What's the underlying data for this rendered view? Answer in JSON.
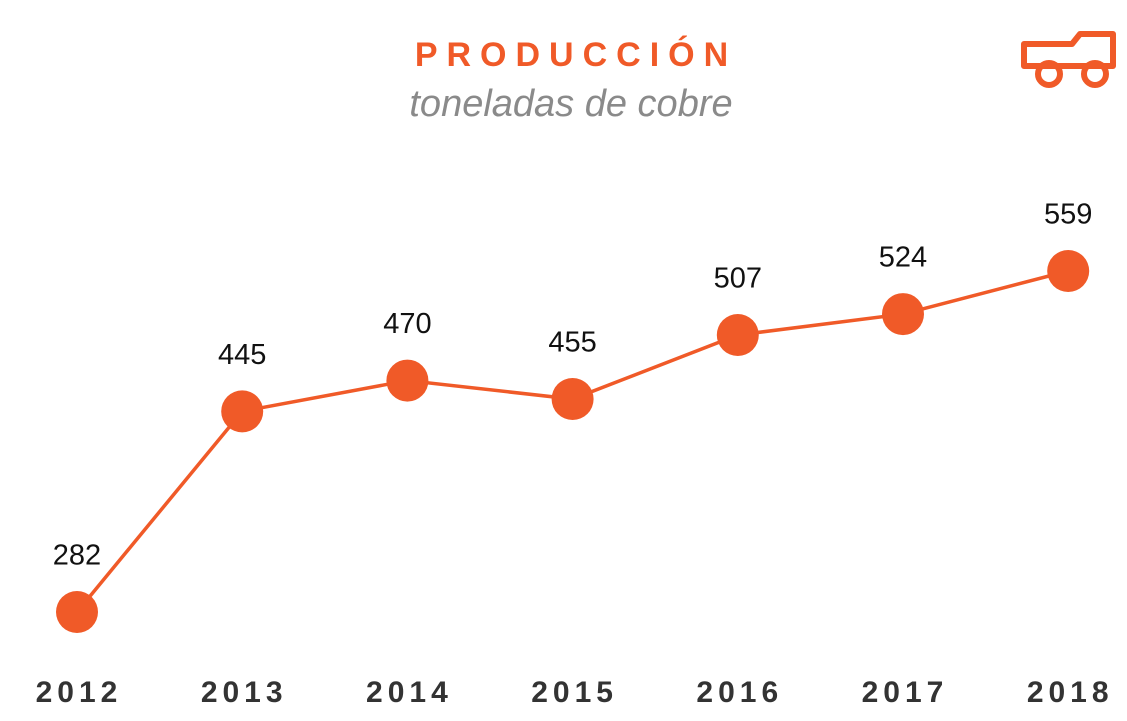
{
  "chart_data": {
    "type": "line",
    "title": "PRODUCCIÓN",
    "subtitle": "toneladas de cobre",
    "categories": [
      "2012",
      "2013",
      "2014",
      "2015",
      "2016",
      "2017",
      "2018"
    ],
    "values": [
      282,
      445,
      470,
      455,
      507,
      524,
      559
    ],
    "color": "#f05a28",
    "grid": false
  }
}
